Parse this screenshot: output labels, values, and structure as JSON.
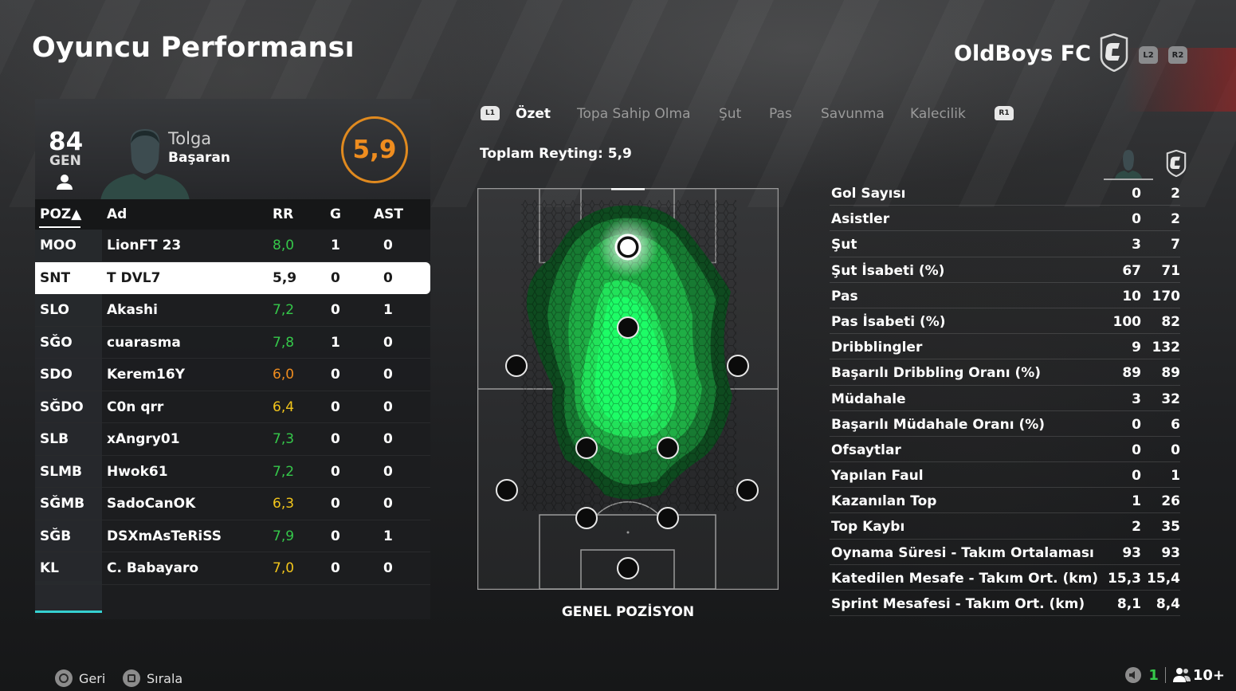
{
  "header": {
    "title": "Oyuncu Performansı",
    "club_name": "OldBoys FC",
    "left_bumper": "L2",
    "right_bumper": "R2"
  },
  "player_card": {
    "overall": "84",
    "overall_label": "GEN",
    "first_name": "Tolga",
    "last_name": "Başaran",
    "match_rating": "5,9",
    "rating_color": "#ef8d1f"
  },
  "table": {
    "headers": {
      "pos": "POZ▲",
      "name": "Ad",
      "rating": "RR",
      "goals": "G",
      "assists": "AST"
    },
    "rows": [
      {
        "pos": "MOO",
        "name": "LionFT 23",
        "rating": "8,0",
        "rating_color": "#35c84a",
        "goals": "1",
        "assists": "0"
      },
      {
        "pos": "SNT",
        "name": "T DVL7",
        "rating": "5,9",
        "rating_color": "#1a1a1a",
        "goals": "0",
        "assists": "0",
        "selected": true
      },
      {
        "pos": "SLO",
        "name": "Akashi",
        "rating": "7,2",
        "rating_color": "#35c84a",
        "goals": "0",
        "assists": "1"
      },
      {
        "pos": "SĞO",
        "name": "cuarasma",
        "rating": "7,8",
        "rating_color": "#35c84a",
        "goals": "1",
        "assists": "0"
      },
      {
        "pos": "SDO",
        "name": "Kerem16Y",
        "rating": "6,0",
        "rating_color": "#ef8d1f",
        "goals": "0",
        "assists": "0"
      },
      {
        "pos": "SĞDO",
        "name": "C0n qrr",
        "rating": "6,4",
        "rating_color": "#f2c51b",
        "goals": "0",
        "assists": "0"
      },
      {
        "pos": "SLB",
        "name": "xAngry01",
        "rating": "7,3",
        "rating_color": "#35c84a",
        "goals": "0",
        "assists": "0"
      },
      {
        "pos": "SLMB",
        "name": "Hwok61",
        "rating": "7,2",
        "rating_color": "#35c84a",
        "goals": "0",
        "assists": "0"
      },
      {
        "pos": "SĞMB",
        "name": "SadoCanOK",
        "rating": "6,3",
        "rating_color": "#f2c51b",
        "goals": "0",
        "assists": "0"
      },
      {
        "pos": "SĞB",
        "name": "DSXmAsTeRiSS",
        "rating": "7,9",
        "rating_color": "#35c84a",
        "goals": "0",
        "assists": "1"
      },
      {
        "pos": "KL",
        "name": "C. Babayaro",
        "rating": "7,0",
        "rating_color": "#f2c51b",
        "goals": "0",
        "assists": "0"
      }
    ]
  },
  "tabs": {
    "left_bumper": "L1",
    "right_bumper": "R1",
    "items": [
      "Özet",
      "Topa Sahip Olma",
      "Şut",
      "Pas",
      "Savunma",
      "Kalecilik"
    ],
    "active": "Özet"
  },
  "total_rating": "Toplam Reyting: 5,9",
  "pitch": {
    "caption": "GENEL POZİSYON"
  },
  "stats": [
    {
      "label": "Gol Sayısı",
      "player": "0",
      "team": "2"
    },
    {
      "label": "Asistler",
      "player": "0",
      "team": "2"
    },
    {
      "label": "Şut",
      "player": "3",
      "team": "7"
    },
    {
      "label": "Şut İsabeti (%)",
      "player": "67",
      "team": "71"
    },
    {
      "label": "Pas",
      "player": "10",
      "team": "170"
    },
    {
      "label": "Pas İsabeti (%)",
      "player": "100",
      "team": "82"
    },
    {
      "label": "Dribblingler",
      "player": "9",
      "team": "132"
    },
    {
      "label": "Başarılı Dribbling Oranı (%)",
      "player": "89",
      "team": "89"
    },
    {
      "label": "Müdahale",
      "player": "3",
      "team": "32"
    },
    {
      "label": "Başarılı Müdahale Oranı (%)",
      "player": "0",
      "team": "6"
    },
    {
      "label": "Ofsaytlar",
      "player": "0",
      "team": "0"
    },
    {
      "label": "Yapılan Faul",
      "player": "0",
      "team": "1"
    },
    {
      "label": "Kazanılan Top",
      "player": "1",
      "team": "26"
    },
    {
      "label": "Top Kaybı",
      "player": "2",
      "team": "35"
    },
    {
      "label": "Oynama Süresi - Takım Ortalaması",
      "player": "93",
      "team": "93"
    },
    {
      "label": "Katedilen Mesafe - Takım Ort. (km)",
      "player": "15,3",
      "team": "15,4"
    },
    {
      "label": "Sprint Mesafesi - Takım Ort. (km)",
      "player": "8,1",
      "team": "8,4"
    }
  ],
  "footer": {
    "back_label": "Geri",
    "sort_label": "Sırala",
    "mic_count": "1",
    "players_count": "10+",
    "accent_color": "#36d1d1"
  }
}
